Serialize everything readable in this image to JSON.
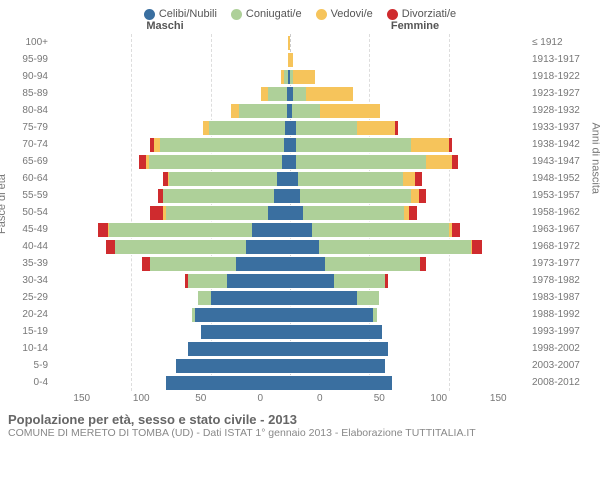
{
  "legend": [
    {
      "label": "Celibi/Nubili",
      "color": "#3a6fa0"
    },
    {
      "label": "Coniugati/e",
      "color": "#aed099"
    },
    {
      "label": "Vedovi/e",
      "color": "#f6c45b"
    },
    {
      "label": "Divorziati/e",
      "color": "#cf2b2e"
    }
  ],
  "header_left": "Maschi",
  "header_right": "Femmine",
  "axis_left_title": "Fasce di età",
  "axis_right_title": "Anni di nascita",
  "xticks_left": [
    "150",
    "100",
    "50",
    "0"
  ],
  "xticks_right": [
    "0",
    "50",
    "100",
    "150"
  ],
  "xmax": 150,
  "title": "Popolazione per età, sesso e stato civile - 2013",
  "subtitle": "COMUNE DI MERETO DI TOMBA (UD) - Dati ISTAT 1° gennaio 2013 - Elaborazione TUTTITALIA.IT",
  "rows": [
    {
      "age": "100+",
      "birth": "≤ 1912",
      "m": [
        0,
        0,
        1,
        0
      ],
      "f": [
        0,
        0,
        0,
        0
      ]
    },
    {
      "age": "95-99",
      "birth": "1913-1917",
      "m": [
        0,
        0,
        1,
        0
      ],
      "f": [
        0,
        0,
        2,
        0
      ]
    },
    {
      "age": "90-94",
      "birth": "1918-1922",
      "m": [
        1,
        3,
        2,
        0
      ],
      "f": [
        0,
        2,
        14,
        0
      ]
    },
    {
      "age": "85-89",
      "birth": "1923-1927",
      "m": [
        2,
        12,
        4,
        0
      ],
      "f": [
        2,
        8,
        30,
        0
      ]
    },
    {
      "age": "80-84",
      "birth": "1928-1932",
      "m": [
        2,
        30,
        5,
        0
      ],
      "f": [
        1,
        18,
        38,
        0
      ]
    },
    {
      "age": "75-79",
      "birth": "1933-1937",
      "m": [
        3,
        48,
        4,
        0
      ],
      "f": [
        4,
        38,
        24,
        2
      ]
    },
    {
      "age": "70-74",
      "birth": "1938-1942",
      "m": [
        4,
        78,
        4,
        2
      ],
      "f": [
        4,
        72,
        24,
        2
      ]
    },
    {
      "age": "65-69",
      "birth": "1943-1947",
      "m": [
        5,
        84,
        2,
        4
      ],
      "f": [
        4,
        82,
        16,
        4
      ]
    },
    {
      "age": "60-64",
      "birth": "1948-1952",
      "m": [
        8,
        68,
        1,
        3
      ],
      "f": [
        5,
        66,
        8,
        4
      ]
    },
    {
      "age": "55-59",
      "birth": "1953-1957",
      "m": [
        10,
        70,
        0,
        3
      ],
      "f": [
        6,
        70,
        5,
        5
      ]
    },
    {
      "age": "50-54",
      "birth": "1958-1962",
      "m": [
        14,
        64,
        2,
        8
      ],
      "f": [
        8,
        64,
        3,
        5
      ]
    },
    {
      "age": "45-49",
      "birth": "1963-1967",
      "m": [
        24,
        90,
        1,
        6
      ],
      "f": [
        14,
        86,
        2,
        5
      ]
    },
    {
      "age": "40-44",
      "birth": "1968-1972",
      "m": [
        28,
        82,
        0,
        6
      ],
      "f": [
        18,
        96,
        1,
        6
      ]
    },
    {
      "age": "35-39",
      "birth": "1973-1977",
      "m": [
        34,
        54,
        0,
        5
      ],
      "f": [
        22,
        60,
        0,
        4
      ]
    },
    {
      "age": "30-34",
      "birth": "1978-1982",
      "m": [
        40,
        24,
        0,
        2
      ],
      "f": [
        28,
        32,
        0,
        2
      ]
    },
    {
      "age": "25-29",
      "birth": "1983-1987",
      "m": [
        50,
        8,
        0,
        0
      ],
      "f": [
        42,
        14,
        0,
        0
      ]
    },
    {
      "age": "20-24",
      "birth": "1988-1992",
      "m": [
        60,
        2,
        0,
        0
      ],
      "f": [
        52,
        3,
        0,
        0
      ]
    },
    {
      "age": "15-19",
      "birth": "1993-1997",
      "m": [
        56,
        0,
        0,
        0
      ],
      "f": [
        58,
        0,
        0,
        0
      ]
    },
    {
      "age": "10-14",
      "birth": "1998-2002",
      "m": [
        64,
        0,
        0,
        0
      ],
      "f": [
        62,
        0,
        0,
        0
      ]
    },
    {
      "age": "5-9",
      "birth": "2003-2007",
      "m": [
        72,
        0,
        0,
        0
      ],
      "f": [
        60,
        0,
        0,
        0
      ]
    },
    {
      "age": "0-4",
      "birth": "2008-2012",
      "m": [
        78,
        0,
        0,
        0
      ],
      "f": [
        64,
        0,
        0,
        0
      ]
    }
  ],
  "colors": {
    "seg": [
      "#3a6fa0",
      "#aed099",
      "#f6c45b",
      "#cf2b2e"
    ],
    "bg": "#ffffff"
  }
}
